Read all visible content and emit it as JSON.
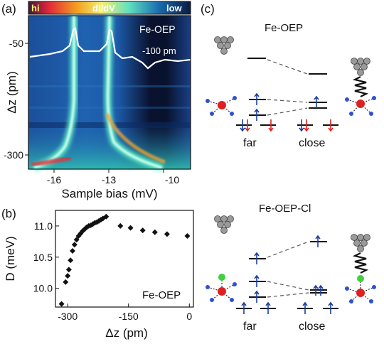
{
  "panels": {
    "a": "(a)",
    "b": "(b)",
    "c": "(c)"
  },
  "panel_a": {
    "colorbar": {
      "hi": "hi",
      "mid": "dI/dV",
      "low": "low"
    },
    "molecule": "Fe-OEP",
    "setpoint": "-100 pm",
    "ylabel": "Δz (pm)",
    "xlabel": "Sample bias (mV)",
    "xticks": [
      "-16",
      "-13",
      "-10"
    ],
    "yticks": [
      "-50",
      "-300"
    ]
  },
  "panel_c": {
    "top_title": "Fe-OEP",
    "bottom_title": "Fe-OEP-Cl",
    "far": "far",
    "close": "close",
    "far_2": "far",
    "close_2": "close"
  },
  "chart_data": {
    "type": "scatter",
    "title": "",
    "annotation": "Fe-OEP",
    "xlabel": "Δz (pm)",
    "ylabel": "D (meV)",
    "xlim": [
      -330,
      10
    ],
    "ylim": [
      9.7,
      11.25
    ],
    "xticks": [
      "-300",
      "-150",
      "0"
    ],
    "yticks": [
      "10.0",
      "10.5",
      "11.0"
    ],
    "x": [
      -315,
      -305,
      -300,
      -297,
      -293,
      -288,
      -283,
      -278,
      -273,
      -268,
      -263,
      -258,
      -253,
      -248,
      -243,
      -238,
      -233,
      -228,
      -223,
      -218,
      -213,
      -205,
      -170,
      -145,
      -115,
      -85,
      -55,
      -5
    ],
    "y": [
      9.75,
      10.1,
      10.2,
      10.3,
      10.45,
      10.6,
      10.7,
      10.78,
      10.84,
      10.88,
      10.92,
      10.95,
      10.98,
      11.0,
      11.01,
      11.03,
      11.05,
      11.06,
      11.08,
      11.1,
      11.12,
      11.15,
      11.0,
      10.97,
      10.93,
      10.9,
      10.87,
      10.84
    ]
  }
}
